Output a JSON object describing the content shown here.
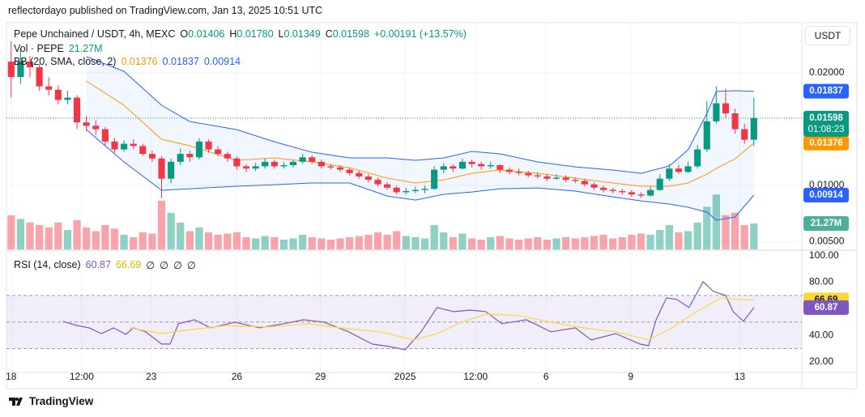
{
  "header": "reflectordayo published on TradingView.com, Jan 13, 2025 10:51 UTC",
  "currency": "USDT",
  "footer": "TradingView",
  "chart_data": [
    {
      "type": "candlestick",
      "title": "Pepe Unchained / USDT, 4h, MEXC",
      "ohlc_labels": [
        "O",
        "H",
        "L",
        "C"
      ],
      "ohlc_printed": [
        "0.01406",
        "0.01780",
        "0.01349",
        "0.01598"
      ],
      "change": "+0.00191 (+13.57%)",
      "countdown": "01:08:23",
      "up_color": "#089981",
      "down_color": "#f23645",
      "xlim": [
        -0.5,
        84.1
      ],
      "xticks": [
        {
          "value": 0,
          "label": "18"
        },
        {
          "value": 7.5,
          "label": "12:00"
        },
        {
          "value": 14.9,
          "label": "23"
        },
        {
          "value": 24,
          "label": "26"
        },
        {
          "value": 32.9,
          "label": "29"
        },
        {
          "value": 41.9,
          "label": "2025"
        },
        {
          "value": 49.4,
          "label": "12:00"
        },
        {
          "value": 56.9,
          "label": "6"
        },
        {
          "value": 65.9,
          "label": "9"
        },
        {
          "value": 77.5,
          "label": "13"
        }
      ],
      "ylim": [
        0.00432,
        0.02446
      ],
      "yticks": [
        {
          "value": 0.005,
          "label": "0.00500"
        },
        {
          "value": 0.01,
          "label": "0.01000"
        },
        {
          "value": 0.02,
          "label": "0.02000"
        }
      ],
      "grid": true,
      "ohlc": [
        [
          0.021,
          0.0228,
          0.0178,
          0.01964
        ],
        [
          0.01964,
          0.0222,
          0.019,
          0.021
        ],
        [
          0.021,
          0.0215,
          0.0196,
          0.0205
        ],
        [
          0.0205,
          0.0208,
          0.0184,
          0.0188
        ],
        [
          0.0188,
          0.0196,
          0.018,
          0.0185
        ],
        [
          0.0185,
          0.0189,
          0.0172,
          0.0176
        ],
        [
          0.0176,
          0.0184,
          0.0172,
          0.0178
        ],
        [
          0.0178,
          0.018,
          0.015,
          0.0156
        ],
        [
          0.0156,
          0.0162,
          0.0148,
          0.0153
        ],
        [
          0.0153,
          0.0158,
          0.0145,
          0.015
        ],
        [
          0.015,
          0.0152,
          0.0136,
          0.0139
        ],
        [
          0.0139,
          0.0142,
          0.0129,
          0.0132
        ],
        [
          0.0132,
          0.014,
          0.013,
          0.0137
        ],
        [
          0.0137,
          0.0141,
          0.0132,
          0.0135
        ],
        [
          0.0135,
          0.0137,
          0.0126,
          0.0128
        ],
        [
          0.0128,
          0.0131,
          0.0121,
          0.0124
        ],
        [
          0.0124,
          0.0126,
          0.0089,
          0.0106
        ],
        [
          0.0106,
          0.0124,
          0.0102,
          0.0121
        ],
        [
          0.0121,
          0.0133,
          0.0118,
          0.0128
        ],
        [
          0.0128,
          0.0131,
          0.0121,
          0.0125
        ],
        [
          0.0125,
          0.0142,
          0.0123,
          0.0139
        ],
        [
          0.0139,
          0.0141,
          0.0129,
          0.0132
        ],
        [
          0.0132,
          0.0135,
          0.0126,
          0.0128
        ],
        [
          0.0128,
          0.013,
          0.0121,
          0.0124
        ],
        [
          0.0124,
          0.0126,
          0.0114,
          0.0117
        ],
        [
          0.0117,
          0.0119,
          0.0112,
          0.0115
        ],
        [
          0.0115,
          0.012,
          0.0113,
          0.0117
        ],
        [
          0.0117,
          0.0124,
          0.0115,
          0.0121
        ],
        [
          0.0121,
          0.0123,
          0.0115,
          0.0117
        ],
        [
          0.0117,
          0.0121,
          0.0115,
          0.0118
        ],
        [
          0.0118,
          0.0123,
          0.0116,
          0.0121
        ],
        [
          0.0121,
          0.0128,
          0.0119,
          0.0125
        ],
        [
          0.0125,
          0.0127,
          0.0119,
          0.0121
        ],
        [
          0.0121,
          0.0123,
          0.0115,
          0.0117
        ],
        [
          0.0117,
          0.0119,
          0.0114,
          0.0116
        ],
        [
          0.0116,
          0.0118,
          0.0112,
          0.0114
        ],
        [
          0.0114,
          0.0116,
          0.0109,
          0.0111
        ],
        [
          0.0111,
          0.0113,
          0.0106,
          0.0108
        ],
        [
          0.0108,
          0.011,
          0.0103,
          0.0105
        ],
        [
          0.0105,
          0.0107,
          0.0099,
          0.0101
        ],
        [
          0.0101,
          0.0103,
          0.0096,
          0.0098
        ],
        [
          0.0098,
          0.01,
          0.0092,
          0.0094
        ],
        [
          0.0094,
          0.0098,
          0.0092,
          0.0095
        ],
        [
          0.0095,
          0.0099,
          0.0093,
          0.0096
        ],
        [
          0.0096,
          0.01,
          0.0093,
          0.0097
        ],
        [
          0.0097,
          0.0117,
          0.0096,
          0.0114
        ],
        [
          0.0114,
          0.012,
          0.0111,
          0.0117
        ],
        [
          0.0117,
          0.0119,
          0.0112,
          0.0115
        ],
        [
          0.0115,
          0.0124,
          0.0114,
          0.0121
        ],
        [
          0.0121,
          0.0123,
          0.0116,
          0.0119
        ],
        [
          0.0119,
          0.0121,
          0.0114,
          0.0117
        ],
        [
          0.0117,
          0.0121,
          0.0115,
          0.0118
        ],
        [
          0.0118,
          0.0119,
          0.0111,
          0.0114
        ],
        [
          0.0114,
          0.0116,
          0.011,
          0.0112
        ],
        [
          0.0112,
          0.0115,
          0.0109,
          0.0111
        ],
        [
          0.0111,
          0.0113,
          0.0107,
          0.0109
        ],
        [
          0.0109,
          0.0112,
          0.0106,
          0.0108
        ],
        [
          0.0108,
          0.011,
          0.0104,
          0.0106
        ],
        [
          0.0106,
          0.011,
          0.0105,
          0.0107
        ],
        [
          0.0107,
          0.0109,
          0.0103,
          0.0105
        ],
        [
          0.0105,
          0.0107,
          0.0102,
          0.0104
        ],
        [
          0.0104,
          0.0106,
          0.0099,
          0.0101
        ],
        [
          0.0101,
          0.0103,
          0.0096,
          0.0098
        ],
        [
          0.0098,
          0.01,
          0.0094,
          0.0096
        ],
        [
          0.0096,
          0.0098,
          0.0093,
          0.0095
        ],
        [
          0.0095,
          0.0097,
          0.0092,
          0.0094
        ],
        [
          0.0094,
          0.0096,
          0.009,
          0.0092
        ],
        [
          0.0092,
          0.0094,
          0.0089,
          0.0091
        ],
        [
          0.0091,
          0.0099,
          0.009,
          0.0096
        ],
        [
          0.0096,
          0.011,
          0.0095,
          0.0106
        ],
        [
          0.0106,
          0.0119,
          0.0104,
          0.0115
        ],
        [
          0.0115,
          0.0118,
          0.011,
          0.0112
        ],
        [
          0.0112,
          0.0121,
          0.0111,
          0.0117
        ],
        [
          0.0117,
          0.0136,
          0.0115,
          0.0132
        ],
        [
          0.0132,
          0.0175,
          0.013,
          0.0157
        ],
        [
          0.0157,
          0.0188,
          0.0155,
          0.0173
        ],
        [
          0.0173,
          0.0186,
          0.016,
          0.0164
        ],
        [
          0.0164,
          0.0168,
          0.0146,
          0.015
        ],
        [
          0.015,
          0.0155,
          0.0137,
          0.01406
        ],
        [
          0.01406,
          0.0178,
          0.01349,
          0.01598
        ]
      ],
      "volume": {
        "name": "Vol · PEPE",
        "last_label": "21.27M",
        "ylim": [
          0,
          186
        ],
        "values": [
          28,
          25,
          22,
          20,
          18,
          22,
          16,
          24,
          18,
          15,
          20,
          17,
          12,
          10,
          14,
          13,
          40,
          30,
          22,
          15,
          18,
          14,
          12,
          13,
          14,
          10,
          9,
          11,
          10,
          8,
          9,
          12,
          10,
          9,
          8,
          9,
          10,
          11,
          12,
          14,
          12,
          15,
          11,
          10,
          9,
          20,
          14,
          10,
          13,
          9,
          8,
          10,
          11,
          9,
          8,
          9,
          10,
          8,
          9,
          10,
          9,
          10,
          11,
          12,
          9,
          10,
          12,
          13,
          12,
          16,
          20,
          14,
          15,
          22,
          35,
          45,
          28,
          30,
          20,
          21.27
        ]
      },
      "bb": {
        "label": "BB (20, SMA, close, 2)",
        "basis_color": "#ff9800",
        "band_color": "#2962ff",
        "x": [
          8,
          12,
          16,
          19,
          24,
          28,
          32,
          36,
          40,
          43,
          46,
          49,
          52,
          56,
          60,
          64,
          67,
          70,
          72,
          74,
          75,
          77,
          79
        ],
        "basis": [
          0.01928,
          0.01712,
          0.0141,
          0.01353,
          0.01223,
          0.01245,
          0.01209,
          0.01158,
          0.01065,
          0.01022,
          0.0105,
          0.01108,
          0.01137,
          0.01108,
          0.01065,
          0.01022,
          0.00993,
          0.00993,
          0.01022,
          0.01101,
          0.01151,
          0.01237,
          0.01376
        ],
        "upper": [
          0.02144,
          0.02014,
          0.01712,
          0.01568,
          0.01496,
          0.01388,
          0.01295,
          0.01245,
          0.01245,
          0.01223,
          0.01245,
          0.01302,
          0.01281,
          0.01209,
          0.01165,
          0.01137,
          0.01108,
          0.01173,
          0.01317,
          0.0164,
          0.01835,
          0.01842,
          0.01837
        ],
        "lower": [
          0.01496,
          0.01209,
          0.00957,
          0.00971,
          0.00993,
          0.01007,
          0.01022,
          0.01022,
          0.00906,
          0.0087,
          0.00921,
          0.00942,
          0.00971,
          0.00978,
          0.0095,
          0.00899,
          0.00863,
          0.00835,
          0.00806,
          0.00763,
          0.00691,
          0.00719,
          0.00914
        ]
      }
    },
    {
      "type": "line",
      "title": "RSI (14, close)",
      "na_labels": [
        "∅",
        "∅",
        "∅",
        "∅"
      ],
      "xlim": [
        -0.5,
        84.1
      ],
      "ylim": [
        12,
        103.5
      ],
      "yticks": [
        {
          "value": 20,
          "label": "20.00"
        },
        {
          "value": 40,
          "label": "40.00"
        },
        {
          "value": 80,
          "label": "80.00"
        },
        {
          "value": 100,
          "label": "100.00"
        }
      ],
      "levels": [
        30,
        50,
        70
      ],
      "series": [
        {
          "color": "#7e57c2",
          "x": [
            5.5,
            7.0,
            8.3,
            9.6,
            10.9,
            12.2,
            13.0,
            14.3,
            16.0,
            16.9,
            17.8,
            19.5,
            21.2,
            23.8,
            26.4,
            29.0,
            31.1,
            33.3,
            35.9,
            38.4,
            40.2,
            41.9,
            43.6,
            45.3,
            47.1,
            48.8,
            50.5,
            52.2,
            54.8,
            57.4,
            60.0,
            61.7,
            64.3,
            66.9,
            67.8,
            68.6,
            69.7,
            70.8,
            72.1,
            73.6,
            74.7,
            76.0,
            76.8,
            77.9,
            79.0
          ],
          "values": [
            50.5,
            47.4,
            45.6,
            41.3,
            45.6,
            40.7,
            45.6,
            42.6,
            33.4,
            33.4,
            48.7,
            51.7,
            45.6,
            49.9,
            45.6,
            48.7,
            51.7,
            49.9,
            42.6,
            33.4,
            31.6,
            29.1,
            42.6,
            60.9,
            57.8,
            59.0,
            57.8,
            48.7,
            51.7,
            42.6,
            45.6,
            36.5,
            41.3,
            33.4,
            32.2,
            51.7,
            68.2,
            67.0,
            60.9,
            80.4,
            73.0,
            70.0,
            57.8,
            50.5,
            60.87
          ]
        },
        {
          "color": "#fdd835",
          "x": [
            12.6,
            16.0,
            18.6,
            22.9,
            27.2,
            31.6,
            35.0,
            39.3,
            42.8,
            45.3,
            47.9,
            50.5,
            54.0,
            57.4,
            60.9,
            64.3,
            67.8,
            70.3,
            72.9,
            75.5,
            77.2,
            79.0
          ],
          "values": [
            45.6,
            41.3,
            43.8,
            47.4,
            46.2,
            48.7,
            45.6,
            42.6,
            36.5,
            41.3,
            49.9,
            56.0,
            54.8,
            49.9,
            45.6,
            42.6,
            36.5,
            45.6,
            57.8,
            68.2,
            67.0,
            66.69
          ]
        }
      ]
    }
  ]
}
